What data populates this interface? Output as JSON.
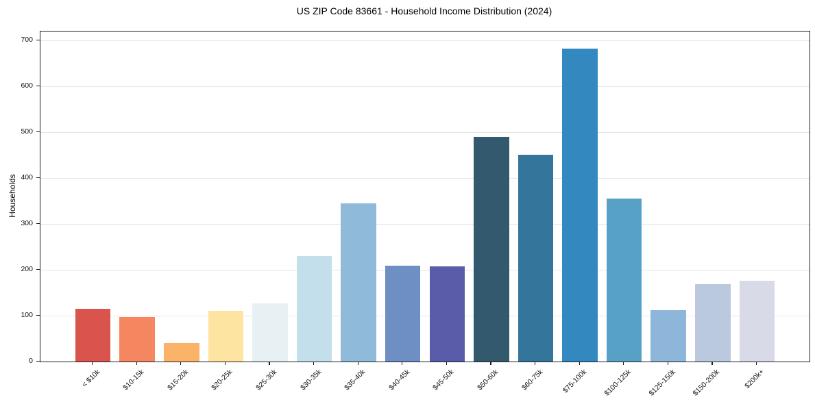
{
  "title": "US ZIP Code 83661 - Household Income Distribution (2024)",
  "chart_data": {
    "type": "bar",
    "title": "US ZIP Code 83661 - Household Income Distribution (2024)",
    "xlabel": "",
    "ylabel": "Households",
    "categories": [
      "< $10k",
      "$10-15k",
      "$15-20k",
      "$20-25k",
      "$25-30k",
      "$30-35k",
      "$35-40k",
      "$40-45k",
      "$45-50k",
      "$50-60k",
      "$60-75k",
      "$75-100k",
      "$100-125k",
      "$125-150k",
      "$150-200k",
      "$200k+"
    ],
    "values": [
      115,
      97,
      40,
      110,
      127,
      230,
      344,
      209,
      207,
      490,
      451,
      682,
      355,
      112,
      168,
      176
    ],
    "bar_colors": [
      "#d9544d",
      "#f4875f",
      "#fbb269",
      "#fde5a1",
      "#e7f1f4",
      "#c3dfeb",
      "#8fbada",
      "#6d8fc4",
      "#5a5caa",
      "#33596e",
      "#34759b",
      "#3389bf",
      "#58a1c6",
      "#8db6da",
      "#bac9dd",
      "#d8dae8"
    ],
    "yticks": [
      0,
      100,
      200,
      300,
      400,
      500,
      600,
      700
    ],
    "ylim": [
      0,
      719
    ],
    "grid": "horizontal",
    "gridline_color": "#e6e6e6",
    "spine_color": "#1a1a1a",
    "background_color": "#ffffff",
    "legend": "none",
    "x_tick_rotation_deg": 45
  }
}
